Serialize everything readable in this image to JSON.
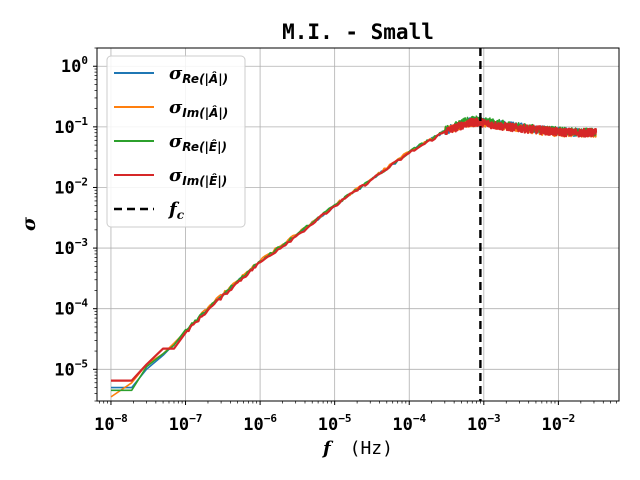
{
  "chart_data": {
    "type": "line",
    "title": "M.I. - Small",
    "xlabel_symbol": "f",
    "xlabel_unit": "(Hz)",
    "ylabel": "σ",
    "xscale": "log",
    "yscale": "log",
    "xlim": [
      6.5e-09,
      0.065
    ],
    "ylim": [
      3e-06,
      2.0
    ],
    "grid": true,
    "legend_position": "top-left",
    "x_ticks": [
      {
        "value": 1e-08,
        "base": "10",
        "exp": "−8"
      },
      {
        "value": 1e-07,
        "base": "10",
        "exp": "−7"
      },
      {
        "value": 1e-06,
        "base": "10",
        "exp": "−6"
      },
      {
        "value": 1e-05,
        "base": "10",
        "exp": "−5"
      },
      {
        "value": 0.0001,
        "base": "10",
        "exp": "−4"
      },
      {
        "value": 0.001,
        "base": "10",
        "exp": "−3"
      },
      {
        "value": 0.01,
        "base": "10",
        "exp": "−2"
      }
    ],
    "y_ticks": [
      {
        "value": 1e-05,
        "base": "10",
        "exp": "−5"
      },
      {
        "value": 0.0001,
        "base": "10",
        "exp": "−4"
      },
      {
        "value": 0.001,
        "base": "10",
        "exp": "−3"
      },
      {
        "value": 0.01,
        "base": "10",
        "exp": "−2"
      },
      {
        "value": 0.1,
        "base": "10",
        "exp": "−1"
      },
      {
        "value": 1,
        "base": "10",
        "exp": "0"
      }
    ],
    "series": [
      {
        "name": "σ_Re(|Â|)",
        "label_main": "σ",
        "label_sub": "Re(|Â|)",
        "color": "#1f77b4",
        "x": [
          1e-08,
          1.9e-08,
          3e-08,
          5e-08,
          7e-08,
          1e-07,
          2e-07,
          5e-07,
          1e-06,
          3e-06,
          1e-05,
          3e-05,
          0.0001,
          0.0003,
          0.0006,
          0.00085,
          0.0015,
          0.003,
          0.006,
          0.01,
          0.02,
          0.032
        ],
        "y": [
          5e-06,
          5e-06,
          1e-05,
          1.7e-05,
          2.6e-05,
          4e-05,
          0.0001,
          0.00028,
          0.0006,
          0.0016,
          0.005,
          0.013,
          0.038,
          0.085,
          0.12,
          0.125,
          0.11,
          0.1,
          0.09,
          0.085,
          0.08,
          0.08
        ]
      },
      {
        "name": "σ_Im(|Â|)",
        "label_main": "σ",
        "label_sub": "Im(|Â|)",
        "color": "#ff7f0e",
        "x": [
          1e-08,
          1.9e-08,
          3e-08,
          5e-08,
          7e-08,
          1e-07,
          2e-07,
          5e-07,
          1e-06,
          3e-06,
          1e-05,
          3e-05,
          0.0001,
          0.0003,
          0.0006,
          0.00085,
          0.0015,
          0.003,
          0.006,
          0.01,
          0.02,
          0.032
        ],
        "y": [
          3.5e-06,
          6e-06,
          1.2e-05,
          1.8e-05,
          2.7e-05,
          4.2e-05,
          0.000105,
          0.00029,
          0.00062,
          0.00165,
          0.0051,
          0.0135,
          0.039,
          0.086,
          0.115,
          0.12,
          0.105,
          0.095,
          0.085,
          0.08,
          0.078,
          0.078
        ]
      },
      {
        "name": "σ_Re(|Ê|)",
        "label_main": "σ",
        "label_sub": "Re(|Ê|)",
        "color": "#2ca02c",
        "x": [
          1e-08,
          1.9e-08,
          3e-08,
          5e-08,
          7e-08,
          1e-07,
          2e-07,
          5e-07,
          1e-06,
          3e-06,
          1e-05,
          3e-05,
          0.0001,
          0.0003,
          0.0006,
          0.00085,
          0.0015,
          0.003,
          0.006,
          0.01,
          0.02,
          0.032
        ],
        "y": [
          4.5e-06,
          4.5e-06,
          1.1e-05,
          1.8e-05,
          2.5e-05,
          4.5e-05,
          0.0001,
          0.00029,
          0.00061,
          0.0016,
          0.0052,
          0.013,
          0.039,
          0.088,
          0.125,
          0.13,
          0.115,
          0.1,
          0.09,
          0.086,
          0.082,
          0.082
        ]
      },
      {
        "name": "σ_Im(|Ê|)",
        "label_main": "σ",
        "label_sub": "Im(|Ê|)",
        "color": "#d62728",
        "x": [
          1e-08,
          1.9e-08,
          3e-08,
          5e-08,
          7e-08,
          1e-07,
          2e-07,
          5e-07,
          1e-06,
          3e-06,
          1e-05,
          3e-05,
          0.0001,
          0.0003,
          0.0006,
          0.00085,
          0.0015,
          0.003,
          0.006,
          0.01,
          0.02,
          0.032
        ],
        "y": [
          6.5e-06,
          6.5e-06,
          1.2e-05,
          2.2e-05,
          2.2e-05,
          4e-05,
          9.5e-05,
          0.00027,
          0.00058,
          0.00155,
          0.0049,
          0.013,
          0.037,
          0.083,
          0.115,
          0.12,
          0.105,
          0.095,
          0.088,
          0.082,
          0.08,
          0.08
        ]
      }
    ],
    "reference_line": {
      "name": "f_c",
      "label_main": "f",
      "label_sub": "c",
      "orientation": "vertical",
      "x": 0.0009,
      "color": "#000000",
      "style": "dashed"
    }
  }
}
